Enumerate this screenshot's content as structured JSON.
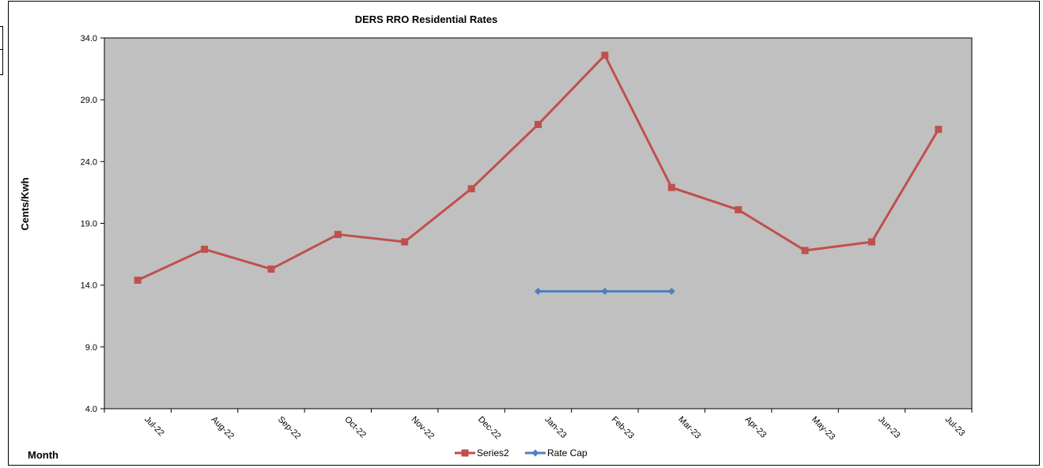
{
  "chart_data": {
    "type": "line",
    "title": "DERS RRO Residential Rates",
    "xlabel": "Month",
    "ylabel": "Cents/Kwh",
    "ylim": [
      4.0,
      34.0
    ],
    "yticks": [
      "4.0",
      "9.0",
      "14.0",
      "19.0",
      "24.0",
      "29.0",
      "34.0"
    ],
    "categories": [
      "Jul-22",
      "Aug-22",
      "Sep-22",
      "Oct-22",
      "Nov-22",
      "Dec-22",
      "Jan-23",
      "Feb-23",
      "Mar-23",
      "Apr-23",
      "May-23",
      "Jun-23",
      "Jul-23"
    ],
    "grid": false,
    "legend_position": "bottom",
    "plot_background": "#c0c0c0",
    "series": [
      {
        "name": "Series2",
        "color": "#c0504d",
        "marker": "square",
        "values": [
          14.4,
          16.9,
          15.3,
          18.1,
          17.5,
          21.8,
          27.0,
          32.6,
          21.9,
          20.1,
          16.8,
          17.5,
          26.6
        ]
      },
      {
        "name": "Rate Cap",
        "color": "#4f81bd",
        "marker": "diamond",
        "values": [
          null,
          null,
          null,
          null,
          null,
          null,
          13.5,
          13.5,
          13.5,
          null,
          null,
          null,
          null
        ]
      }
    ]
  }
}
